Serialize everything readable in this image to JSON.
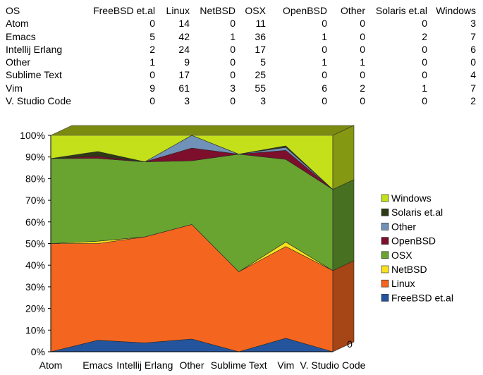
{
  "table": {
    "headers": [
      "OS",
      "FreeBSD et.al",
      "Linux",
      "NetBSD",
      "OSX",
      "OpenBSD",
      "Other",
      "Solaris et.al",
      "Windows"
    ],
    "rows": [
      [
        "Atom",
        "0",
        "14",
        "0",
        "11",
        "0",
        "0",
        "0",
        "3"
      ],
      [
        "Emacs",
        "5",
        "42",
        "1",
        "36",
        "1",
        "0",
        "2",
        "7"
      ],
      [
        "Intellij Erlang",
        "2",
        "24",
        "0",
        "17",
        "0",
        "0",
        "0",
        "6"
      ],
      [
        "Other",
        "1",
        "9",
        "0",
        "5",
        "1",
        "1",
        "0",
        "0"
      ],
      [
        "Sublime Text",
        "0",
        "17",
        "0",
        "25",
        "0",
        "0",
        "0",
        "4"
      ],
      [
        "Vim",
        "9",
        "61",
        "3",
        "55",
        "6",
        "2",
        "1",
        "7"
      ],
      [
        "V. Studio Code",
        "0",
        "3",
        "0",
        "3",
        "0",
        "0",
        "0",
        "2"
      ]
    ]
  },
  "chart_data": {
    "type": "area",
    "stacking": "percent",
    "style": "3d",
    "categories": [
      "Atom",
      "Emacs",
      "Intellij Erlang",
      "Other",
      "Sublime Text",
      "Vim",
      "V. Studio Code"
    ],
    "y_ticks": [
      "0%",
      "10%",
      "20%",
      "30%",
      "40%",
      "50%",
      "60%",
      "70%",
      "80%",
      "90%",
      "100%"
    ],
    "ylim": [
      0,
      100
    ],
    "side_tick_label": "0",
    "legend_position": "right",
    "series": [
      {
        "name": "FreeBSD et.al",
        "color": "#24549c",
        "values": [
          0,
          5,
          2,
          1,
          0,
          9,
          0
        ]
      },
      {
        "name": "Linux",
        "color": "#f46620",
        "values": [
          14,
          42,
          24,
          9,
          17,
          61,
          3
        ]
      },
      {
        "name": "NetBSD",
        "color": "#f9e11e",
        "values": [
          0,
          1,
          0,
          0,
          0,
          3,
          0
        ]
      },
      {
        "name": "OSX",
        "color": "#6aa430",
        "values": [
          11,
          36,
          17,
          5,
          25,
          55,
          3
        ]
      },
      {
        "name": "OpenBSD",
        "color": "#7d0f2c",
        "values": [
          0,
          1,
          0,
          1,
          0,
          6,
          0
        ]
      },
      {
        "name": "Other",
        "color": "#7192b8",
        "values": [
          0,
          0,
          0,
          1,
          0,
          2,
          0
        ]
      },
      {
        "name": "Solaris et.al",
        "color": "#2d3a14",
        "values": [
          0,
          2,
          0,
          0,
          0,
          1,
          0
        ]
      },
      {
        "name": "Windows",
        "color": "#c4e01a",
        "values": [
          3,
          7,
          6,
          0,
          4,
          7,
          2
        ]
      }
    ]
  }
}
